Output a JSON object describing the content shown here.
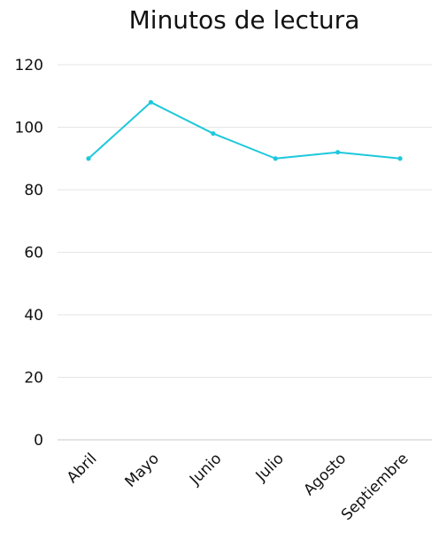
{
  "chart_data": {
    "type": "line",
    "title": "Minutos de lectura",
    "categories": [
      "Abril",
      "Mayo",
      "Junio",
      "Julio",
      "Agosto",
      "Septiembre"
    ],
    "series": [
      {
        "values": [
          90,
          108,
          98,
          90,
          92,
          90
        ],
        "color": "#1ec8dc"
      }
    ],
    "ylim": [
      0,
      120
    ],
    "yticks": [
      0,
      20,
      40,
      60,
      80,
      100,
      120
    ],
    "grid": true,
    "gridColor": "#e6e6e6",
    "axisColor": "#c8c8c8"
  }
}
